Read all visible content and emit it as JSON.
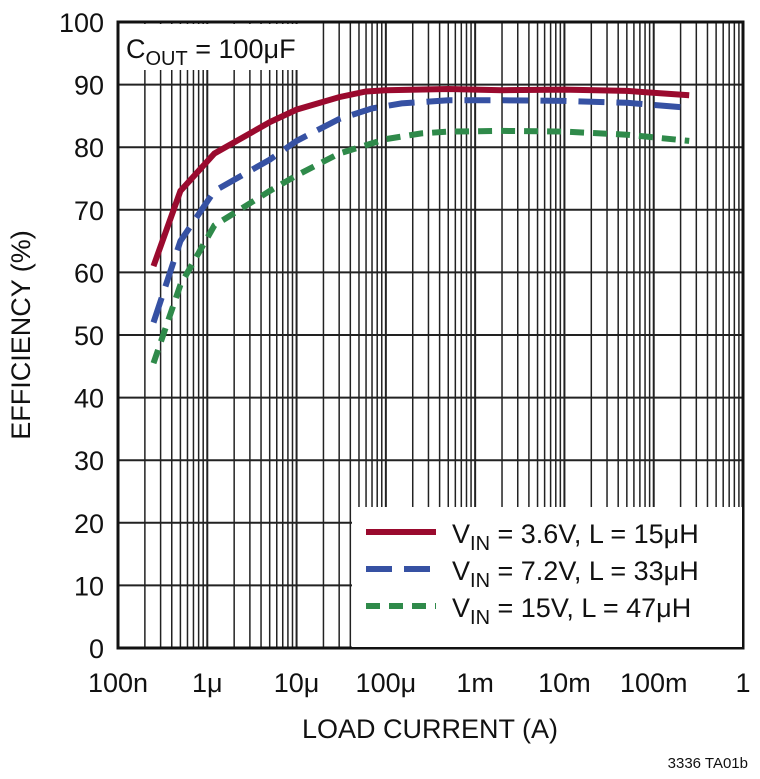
{
  "chart_data": {
    "type": "line",
    "xlabel": "LOAD CURRENT (A)",
    "ylabel": "EFFICIENCY (%)",
    "xscale": "log",
    "xlim": [
      1e-07,
      1
    ],
    "ylim": [
      0,
      100
    ],
    "grid": true,
    "x_tick_labels": [
      "100n",
      "1μ",
      "10μ",
      "100μ",
      "1m",
      "10m",
      "100m",
      "1"
    ],
    "x_tick_values": [
      1e-07,
      1e-06,
      1e-05,
      0.0001,
      0.001,
      0.01,
      0.1,
      1
    ],
    "y_tick_labels": [
      "0",
      "10",
      "20",
      "30",
      "40",
      "50",
      "60",
      "70",
      "80",
      "90",
      "100"
    ],
    "annotation": {
      "main": "C",
      "sub": "OUT",
      "rest": " = 100μF"
    },
    "legend_position": "bottom-right",
    "footnote": "3336 TA01b",
    "series": [
      {
        "name": "VIN = 3.6V, L = 15μH",
        "name_parts": [
          "V",
          "IN",
          " = 3.6V, L = 15μH"
        ],
        "color": "#9a0a2e",
        "style": "solid",
        "x": [
          2.5e-07,
          5e-07,
          1.2e-06,
          5e-06,
          1e-05,
          3e-05,
          6e-05,
          0.0001,
          0.0005,
          0.002,
          0.01,
          0.05,
          0.25
        ],
        "y": [
          61,
          73,
          79,
          84,
          86,
          88,
          88.9,
          89.1,
          89.3,
          89.1,
          89.2,
          89,
          88.3
        ]
      },
      {
        "name": "VIN = 7.2V, L = 33μH",
        "name_parts": [
          "V",
          "IN",
          " = 7.2V, L = 33μH"
        ],
        "color": "#3651a3",
        "style": "longdash",
        "x": [
          2.5e-07,
          5e-07,
          1.2e-06,
          5e-06,
          1e-05,
          3e-05,
          7e-05,
          0.00015,
          0.0005,
          0.002,
          0.01,
          0.05,
          0.25
        ],
        "y": [
          52,
          65,
          73,
          78,
          81,
          84.5,
          86.2,
          87,
          87.5,
          87.5,
          87.4,
          87.1,
          86.3
        ]
      },
      {
        "name": "VIN = 15V, L = 47μH",
        "name_parts": [
          "V",
          "IN",
          " = 15V, L = 47μH"
        ],
        "color": "#2f8a4a",
        "style": "shortdash",
        "x": [
          2.5e-07,
          5e-07,
          1.2e-06,
          5e-06,
          1e-05,
          3e-05,
          0.0001,
          0.00025,
          0.0005,
          0.002,
          0.01,
          0.05,
          0.25
        ],
        "y": [
          45.5,
          58,
          67.5,
          73,
          75.5,
          79,
          81.3,
          82.2,
          82.5,
          82.6,
          82.5,
          82,
          81
        ]
      }
    ]
  }
}
